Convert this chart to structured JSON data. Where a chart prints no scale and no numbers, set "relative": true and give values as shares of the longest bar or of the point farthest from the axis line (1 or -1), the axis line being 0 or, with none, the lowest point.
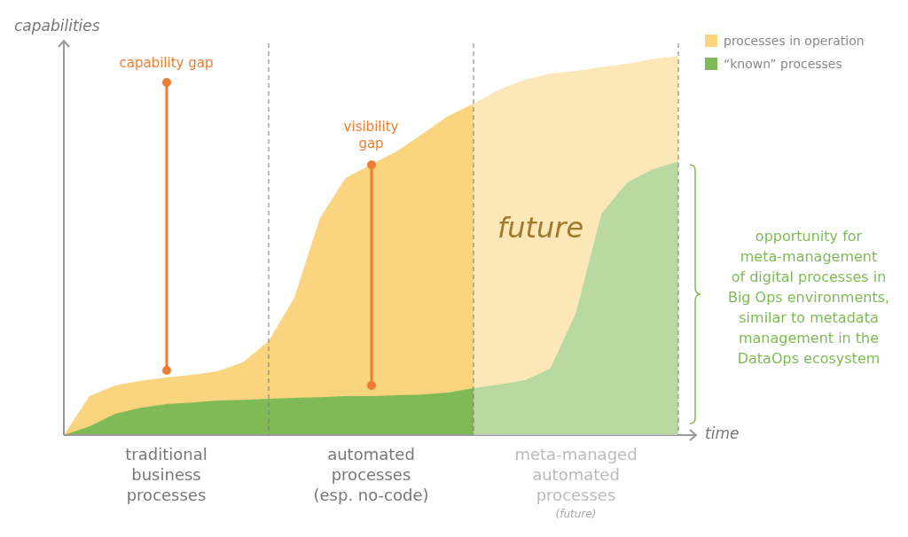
{
  "chart_data": {
    "type": "area",
    "relative": true,
    "marker": "none",
    "grid": "x",
    "ylabel": "capabilities",
    "xlabel": "time",
    "legend": "top right",
    "categories": [
      null,
      null,
      null,
      null,
      null,
      null,
      null,
      null,
      null,
      null,
      null,
      null,
      null,
      null,
      null,
      null,
      null,
      null,
      null,
      null,
      null,
      null,
      null,
      null,
      null
    ],
    "series": [
      {
        "name": "processes in operation",
        "color": "#fad47e",
        "values": [
          0,
          0.103,
          0.131,
          0.143,
          0.152,
          0.159,
          0.168,
          0.192,
          0.248,
          0.362,
          0.572,
          0.678,
          0.713,
          0.748,
          0.794,
          0.841,
          0.874,
          0.911,
          0.937,
          0.953,
          0.96,
          0.97,
          0.979,
          0.991,
          1
        ]
      },
      {
        "name": "“known” processes",
        "color": "#7fba56",
        "values": [
          0,
          0.023,
          0.056,
          0.072,
          0.082,
          0.086,
          0.091,
          0.093,
          0.096,
          0.098,
          0.1,
          0.103,
          0.103,
          0.105,
          0.107,
          0.112,
          0.124,
          0.133,
          0.145,
          0.175,
          0.322,
          0.584,
          0.666,
          0.701,
          0.722
        ]
      }
    ],
    "annotations": [
      "capability gap",
      "visibility\ngap",
      "traditional\nbusiness\nprocesses",
      "automated\nprocesses\n(esp. no-code)",
      "meta-managed\nautomated\nprocesses",
      "(future)",
      "future",
      "opportunity for\nmeta-management\nof digital processes in\nBig Ops environments,\nsimilar to metadata\nmanagement in the\nDataOps ecosystem"
    ]
  }
}
